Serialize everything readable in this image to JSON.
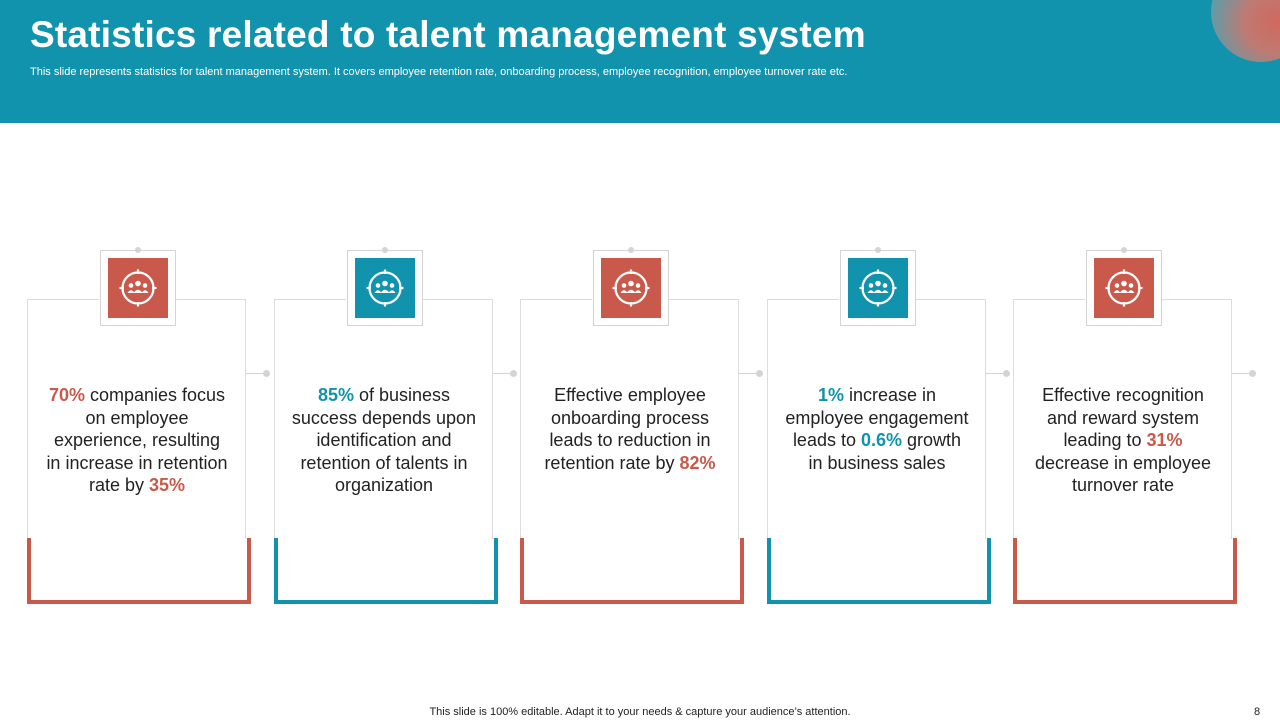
{
  "header": {
    "title": "Statistics related to talent management system",
    "subtitle": "This slide represents statistics for talent management system. It covers employee retention rate, onboarding process, employee recognition, employee turnover rate etc."
  },
  "cards": [
    {
      "icon": "people-target-icon",
      "color": "#c95a4b",
      "lines": [
        {
          "hl": "70%",
          "text": " companies focus"
        },
        {
          "text": "on employee"
        },
        {
          "text": "experience, resulting"
        },
        {
          "text": "in increase in retention"
        },
        {
          "text": "rate by ",
          "hl": "35%",
          "hl_after": true
        }
      ]
    },
    {
      "icon": "people-target-icon",
      "color": "#1193ad",
      "lines": [
        {
          "hl": "85%",
          "text": " of business"
        },
        {
          "text": "success depends upon"
        },
        {
          "text": "identification and"
        },
        {
          "text": "retention of talents in"
        },
        {
          "text": "organization"
        }
      ]
    },
    {
      "icon": "people-target-icon",
      "color": "#c95a4b",
      "lines": [
        {
          "text": "Effective employee"
        },
        {
          "text": "onboarding process"
        },
        {
          "text": "leads to reduction in"
        },
        {
          "text": "retention rate by ",
          "hl": "82%",
          "hl_after": true
        }
      ]
    },
    {
      "icon": "people-target-icon",
      "color": "#1193ad",
      "lines": [
        {
          "hl": "1%",
          "text": " increase in"
        },
        {
          "text": "employee engagement"
        },
        {
          "text": "leads to ",
          "hl": "0.6%",
          "hl_after": true,
          "tail": " growth"
        },
        {
          "text": "in business sales"
        }
      ]
    },
    {
      "icon": "people-target-icon",
      "color": "#c95a4b",
      "lines": [
        {
          "text": "Effective recognition"
        },
        {
          "text": "and reward system"
        },
        {
          "text": "leading to ",
          "hl": "31%",
          "hl_after": true
        },
        {
          "text": "decrease in employee"
        },
        {
          "text": "turnover rate"
        }
      ]
    }
  ],
  "footer": {
    "note": "This slide is 100% editable. Adapt it to your needs & capture your audience’s attention.",
    "page": "8"
  },
  "colors": {
    "red": "#c95a4b",
    "teal": "#1193ad"
  }
}
